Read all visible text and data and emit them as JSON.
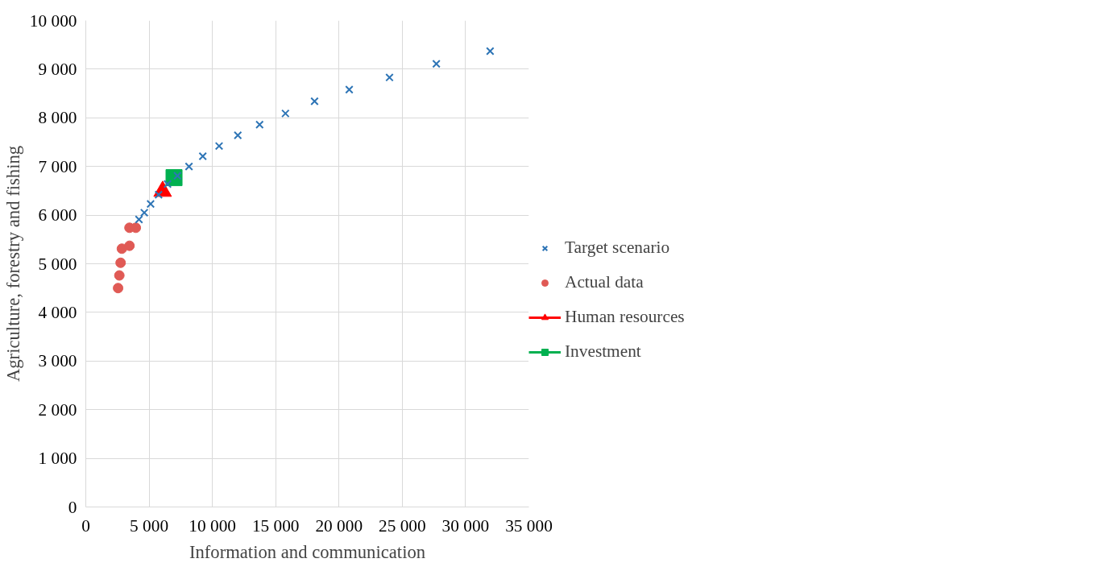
{
  "chart_data": {
    "type": "scatter",
    "xlabel": "Information and communication",
    "ylabel": "Agriculture, forestry and fishing",
    "xlim": [
      0,
      35000
    ],
    "ylim": [
      0,
      10000
    ],
    "xticks": [
      0,
      {
        "value": 5000,
        "label": "5 000"
      },
      {
        "value": 10000,
        "label": "10 000"
      },
      {
        "value": 15000,
        "label": "15 000"
      },
      {
        "value": 20000,
        "label": "20 000"
      },
      {
        "value": 25000,
        "label": "25 000"
      },
      {
        "value": 30000,
        "label": "30 000"
      },
      {
        "value": 35000,
        "label": "35 000"
      }
    ],
    "yticks": [
      0,
      {
        "value": 1000,
        "label": "1 000"
      },
      {
        "value": 2000,
        "label": "2 000"
      },
      {
        "value": 3000,
        "label": "3 000"
      },
      {
        "value": 4000,
        "label": "4 000"
      },
      {
        "value": 5000,
        "label": "5 000"
      },
      {
        "value": 6000,
        "label": "6 000"
      },
      {
        "value": 7000,
        "label": "7 000"
      },
      {
        "value": 8000,
        "label": "8 000"
      },
      {
        "value": 9000,
        "label": "9 000"
      },
      {
        "value": 10000,
        "label": "10 000"
      }
    ],
    "grid": true,
    "legend": "right",
    "series": [
      {
        "name": "Target scenario",
        "marker": "cross",
        "color": "#2e75b6",
        "x": [
          4200,
          4620,
          5120,
          5750,
          6460,
          7240,
          8150,
          9240,
          10530,
          12010,
          13730,
          15770,
          18070,
          20810,
          23990,
          27690,
          31940
        ],
        "values": [
          5910,
          6050,
          6230,
          6420,
          6640,
          6810,
          7000,
          7210,
          7420,
          7640,
          7860,
          8090,
          8340,
          8580,
          8830,
          9110,
          9370
        ]
      },
      {
        "name": "Actual data",
        "marker": "circle",
        "color": "#e05a55",
        "x": [
          3450,
          3950,
          2850,
          3450,
          2750,
          2650,
          2550
        ],
        "values": [
          5740,
          5740,
          5310,
          5370,
          5020,
          4760,
          4500
        ]
      },
      {
        "name": "Human resources",
        "type": "line",
        "marker": "triangle",
        "color": "#ff0000",
        "x": [
          6070
        ],
        "values": [
          6490
        ]
      },
      {
        "name": "Investment",
        "type": "line",
        "marker": "square",
        "color": "#00b050",
        "x": [
          6970
        ],
        "values": [
          6770
        ]
      }
    ]
  }
}
